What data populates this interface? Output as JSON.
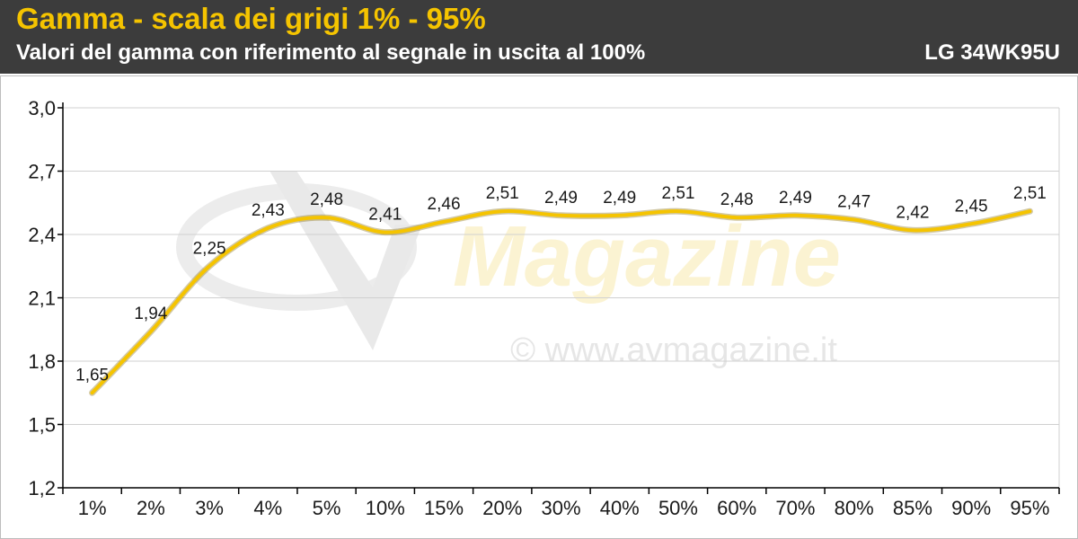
{
  "header": {
    "title": "Gamma - scala dei grigi 1% - 95%",
    "subtitle": "Valori del gamma con riferimento al segnale in uscita al 100%",
    "model": "LG 34WK95U"
  },
  "watermark": {
    "logo_text": "Magazine",
    "url_text": "© www.avmagazine.it"
  },
  "colors": {
    "header_bg": "#3c3c3c",
    "title": "#f5c400",
    "line": "#f5c400",
    "grid": "#d0d0d0"
  },
  "chart_data": {
    "type": "line",
    "title": "Gamma - scala dei grigi 1% - 95%",
    "subtitle": "Valori del gamma con riferimento al segnale in uscita al 100%",
    "xlabel": "",
    "ylabel": "",
    "categories": [
      "1%",
      "2%",
      "3%",
      "4%",
      "5%",
      "10%",
      "15%",
      "20%",
      "30%",
      "40%",
      "50%",
      "60%",
      "70%",
      "80%",
      "85%",
      "90%",
      "95%"
    ],
    "series": [
      {
        "values": [
          1.65,
          1.94,
          2.25,
          2.43,
          2.48,
          2.41,
          2.46,
          2.51,
          2.49,
          2.49,
          2.51,
          2.48,
          2.49,
          2.47,
          2.42,
          2.45,
          2.51
        ],
        "labels": [
          "1,65",
          "1,94",
          "2,25",
          "2,43",
          "2,48",
          "2,41",
          "2,46",
          "2,51",
          "2,49",
          "2,49",
          "2,51",
          "2,48",
          "2,49",
          "2,47",
          "2,42",
          "2,45",
          "2,51"
        ]
      }
    ],
    "ylim": [
      1.2,
      3.0
    ],
    "yticks": [
      1.2,
      1.5,
      1.8,
      2.1,
      2.4,
      2.7,
      3.0
    ],
    "ytick_labels": [
      "1,2",
      "1,5",
      "1,8",
      "2,1",
      "2,4",
      "2,7",
      "3,0"
    ],
    "grid": true,
    "legend": "none",
    "smooth": true
  }
}
